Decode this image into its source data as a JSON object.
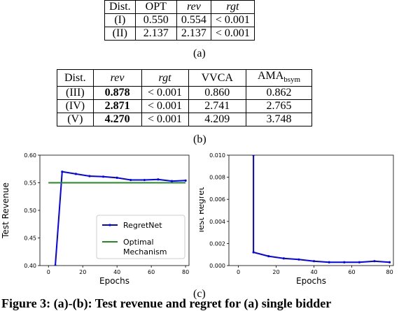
{
  "table_a": {
    "headers": [
      "Dist.",
      "OPT",
      "rev",
      "rgt"
    ],
    "rows": [
      [
        "(I)",
        "0.550",
        "0.554",
        "< 0.001"
      ],
      [
        "(II)",
        "2.137",
        "2.137",
        "< 0.001"
      ]
    ],
    "caption": "(a)"
  },
  "table_b": {
    "headers": [
      "Dist.",
      "rev",
      "rgt",
      "VVCA",
      "AMA"
    ],
    "header_sub": "bsym",
    "rows": [
      [
        "(III)",
        "0.878",
        "< 0.001",
        "0.860",
        "0.862"
      ],
      [
        "(IV)",
        "2.871",
        "< 0.001",
        "2.741",
        "2.765"
      ],
      [
        "(V)",
        "4.270",
        "< 0.001",
        "4.209",
        "3.748"
      ]
    ],
    "caption": "(b)"
  },
  "chart_data": [
    {
      "type": "line",
      "xlabel": "Epochs",
      "ylabel": "Test Revenue",
      "xticks": [
        "0",
        "20",
        "40",
        "60",
        "80"
      ],
      "yticks": [
        "0.40",
        "0.45",
        "0.50",
        "0.55",
        "0.60"
      ],
      "xlim": [
        -5,
        82
      ],
      "ylim": [
        0.4,
        0.6
      ],
      "legend_position": "lower-right",
      "series": [
        {
          "name": "RegretNet",
          "color": "#0000ff",
          "marker": "dot",
          "x": [
            4,
            8,
            16,
            24,
            32,
            40,
            48,
            56,
            64,
            72,
            80
          ],
          "y": [
            0.4,
            0.57,
            0.566,
            0.562,
            0.561,
            0.559,
            0.555,
            0.555,
            0.556,
            0.553,
            0.554
          ]
        },
        {
          "name": "Optimal\nMechanism",
          "color": "#228b22",
          "x": [
            0,
            80
          ],
          "y": [
            0.55,
            0.55
          ]
        }
      ]
    },
    {
      "type": "line",
      "xlabel": "Epochs",
      "ylabel": "Test Regret",
      "xticks": [
        "0",
        "20",
        "40",
        "60",
        "80"
      ],
      "yticks": [
        "0.000",
        "0.002",
        "0.004",
        "0.006",
        "0.008",
        "0.010"
      ],
      "xlim": [
        -5,
        82
      ],
      "ylim": [
        0.0,
        0.01
      ],
      "series": [
        {
          "color": "#0000ff",
          "marker": "dot",
          "x": [
            8,
            8,
            16,
            24,
            32,
            40,
            48,
            56,
            64,
            72,
            80
          ],
          "y": [
            0.01,
            0.0012,
            0.00085,
            0.00065,
            0.00055,
            0.0004,
            0.0003,
            0.0003,
            0.0003,
            0.0004,
            0.0003
          ]
        }
      ]
    }
  ],
  "caption_c": "(c)",
  "figure_caption": {
    "label": "Figure 3:",
    "text": "(a)-(b): Test revenue and regret for (a) single bidder"
  }
}
